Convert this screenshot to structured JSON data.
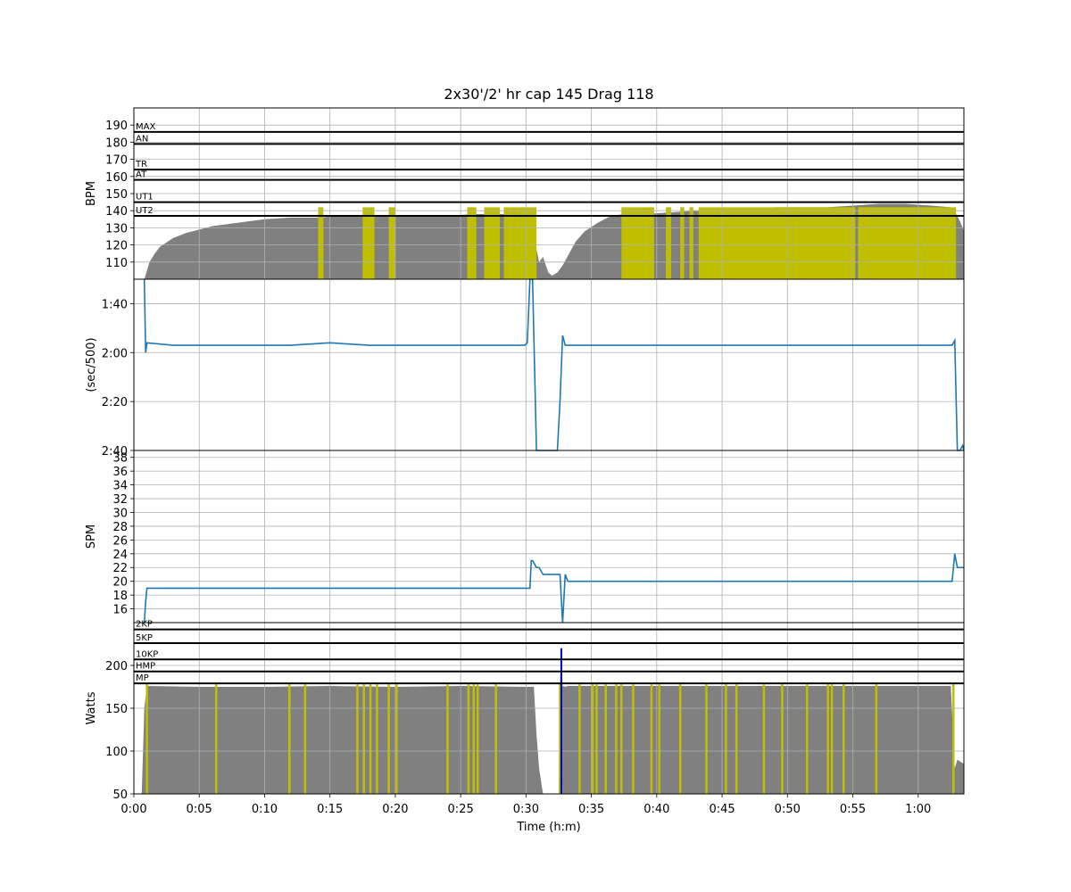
{
  "chart_data": {
    "type": "line",
    "title": "2x30'/2' hr cap 145 Drag 118",
    "xlabel": "Time (h:m)",
    "x_tick_labels": [
      "0:00",
      "0:05",
      "0:10",
      "0:15",
      "0:20",
      "0:25",
      "0:30",
      "0:35",
      "0:40",
      "0:45",
      "0:50",
      "0:55",
      "1:00"
    ],
    "x_tick_minutes": [
      0,
      5,
      10,
      15,
      20,
      25,
      30,
      35,
      40,
      45,
      50,
      55,
      60
    ],
    "xlim_minutes": [
      0,
      63.5
    ],
    "grid": true,
    "colors": {
      "hr_fill": "#808080",
      "highlight": "#bfbf00",
      "line": "#1f77b4",
      "spike": "#0000cc",
      "zone_line": "#000000"
    },
    "panels": [
      {
        "id": "hr",
        "ylabel": "BPM",
        "ylim": [
          100,
          200
        ],
        "yticks": [
          110,
          120,
          130,
          140,
          150,
          160,
          170,
          180,
          190
        ],
        "zones": [
          {
            "label": "MAX",
            "value": 186
          },
          {
            "label": "AN",
            "value": 179
          },
          {
            "label": "TR",
            "value": 164
          },
          {
            "label": "AT",
            "value": 158
          },
          {
            "label": "UT1",
            "value": 145
          },
          {
            "label": "UT2",
            "value": 137
          }
        ],
        "series": {
          "x": [
            0,
            0.8,
            1.2,
            1.6,
            2,
            3,
            4,
            5,
            6,
            8,
            10,
            12,
            14,
            16,
            18,
            20,
            22,
            24,
            26,
            28,
            29.5,
            30.2,
            30.6,
            31,
            31.3,
            31.7,
            32.0,
            32.4,
            32.8,
            33.3,
            33.8,
            34.5,
            35.5,
            36.5,
            37.5,
            39,
            41,
            43,
            45,
            47,
            49,
            51,
            53,
            55,
            57,
            59,
            61,
            62.5,
            63,
            63.3,
            63.5
          ],
          "y": [
            100,
            100,
            110,
            115,
            119,
            124,
            127,
            129,
            131,
            133,
            135,
            136,
            136,
            137,
            137,
            137,
            137,
            137,
            138,
            138,
            138,
            137,
            125,
            110,
            113,
            104,
            102,
            104,
            108,
            115,
            122,
            128,
            133,
            137,
            138,
            138,
            139,
            140,
            141,
            141,
            142,
            142,
            142,
            143,
            144,
            144,
            143,
            142,
            137,
            132,
            128
          ]
        },
        "highlight_bands_minutes": [
          [
            14.1,
            14.5
          ],
          [
            17.5,
            18.4
          ],
          [
            19.5,
            20.0
          ],
          [
            25.5,
            26.2
          ],
          [
            26.8,
            28.0
          ],
          [
            28.3,
            30.8
          ],
          [
            37.3,
            39.8
          ],
          [
            40.7,
            41.1
          ],
          [
            41.8,
            42.1
          ],
          [
            42.5,
            42.8
          ],
          [
            43.2,
            55.2
          ],
          [
            55.4,
            62.9
          ]
        ]
      },
      {
        "id": "pace",
        "ylabel": "(sec/500)",
        "ylim_seconds": [
          160,
          90
        ],
        "yticks_seconds": [
          100,
          120,
          140,
          160
        ],
        "ytick_labels": [
          "1:40",
          "2:00",
          "2:20",
          "2:40"
        ],
        "series": {
          "x": [
            0.8,
            0.9,
            1.0,
            3,
            6,
            9,
            12,
            15,
            18,
            21,
            24,
            27,
            29.9,
            30.1,
            30.3,
            30.5,
            30.8,
            31.0,
            32.4,
            32.6,
            32.8,
            33.0,
            33.2,
            36,
            40,
            44,
            48,
            52,
            56,
            60,
            62.6,
            62.8,
            63.0,
            63.2,
            63.4,
            63.5
          ],
          "y": [
            90,
            120,
            116,
            117,
            117,
            117,
            117,
            116,
            117,
            117,
            117,
            117,
            117,
            116,
            90,
            90,
            160,
            160,
            160,
            140,
            113,
            117,
            117,
            117,
            117,
            117,
            117,
            117,
            117,
            117,
            117,
            115,
            160,
            160,
            158,
            160
          ]
        }
      },
      {
        "id": "spm",
        "ylabel": "SPM",
        "ylim": [
          14,
          39
        ],
        "yticks": [
          16,
          18,
          20,
          22,
          24,
          26,
          28,
          30,
          32,
          34,
          36,
          38
        ],
        "series": {
          "x": [
            0.8,
            0.9,
            1.0,
            1.1,
            5,
            10,
            15,
            20,
            25,
            30,
            30.3,
            30.4,
            30.5,
            30.8,
            31.0,
            31.3,
            31.6,
            32.0,
            32.6,
            32.8,
            33.0,
            33.2,
            33.6,
            40,
            50,
            60,
            62.6,
            62.8,
            63.0,
            63.2,
            63.5
          ],
          "y": [
            14,
            17,
            19,
            19,
            19,
            19,
            19,
            19,
            19,
            19,
            19,
            23,
            23,
            22,
            22,
            21,
            21,
            21,
            21,
            14,
            21,
            20,
            20,
            20,
            20,
            20,
            20,
            24,
            22,
            22,
            22
          ]
        }
      },
      {
        "id": "power",
        "ylabel": "Watts",
        "ylim": [
          50,
          250
        ],
        "yticks": [
          50,
          100,
          150,
          200
        ],
        "zones": [
          {
            "label": "2KP",
            "value": 242
          },
          {
            "label": "5KP",
            "value": 226
          },
          {
            "label": "10KP",
            "value": 207
          },
          {
            "label": "HMP",
            "value": 193
          },
          {
            "label": "MP",
            "value": 179
          }
        ],
        "series": {
          "x": [
            0.6,
            0.8,
            1.0,
            5,
            10,
            15,
            20,
            25,
            30,
            30.6,
            30.8,
            31.0,
            31.2,
            31.3,
            32.5,
            32.6,
            32.7,
            32.8,
            32.9,
            33.0,
            33.2,
            35,
            40,
            45,
            50,
            55,
            60,
            62.5,
            62.8,
            63.0,
            63.5
          ],
          "y": [
            50,
            150,
            176,
            175,
            175,
            176,
            175,
            176,
            175,
            175,
            120,
            80,
            60,
            50,
            50,
            175,
            220,
            175,
            176,
            175,
            176,
            176,
            176,
            176,
            176,
            176,
            176,
            176,
            80,
            90,
            85
          ]
        },
        "spike_minutes": 32.7,
        "highlight_lines_minutes": [
          1.0,
          6.3,
          11.9,
          13.1,
          17.1,
          17.6,
          18.1,
          18.6,
          19.5,
          20.1,
          24.0,
          25.6,
          26.0,
          26.3,
          27.7,
          32.6,
          34.1,
          35.1,
          35.4,
          36.1,
          36.9,
          37.3,
          38.2,
          39.6,
          40.2,
          41.8,
          43.8,
          45.3,
          46.1,
          48.2,
          49.6,
          51.5,
          53.1,
          53.4,
          54.3,
          56.8,
          62.7
        ]
      }
    ]
  }
}
